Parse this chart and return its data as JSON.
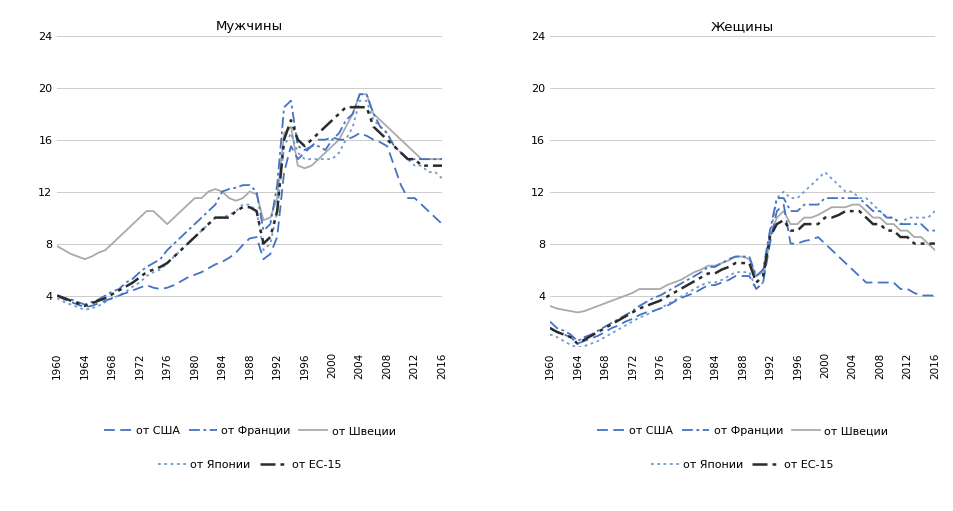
{
  "years": [
    1960,
    1961,
    1962,
    1963,
    1964,
    1965,
    1966,
    1967,
    1968,
    1969,
    1970,
    1971,
    1972,
    1973,
    1974,
    1975,
    1976,
    1977,
    1978,
    1979,
    1980,
    1981,
    1982,
    1983,
    1984,
    1985,
    1986,
    1987,
    1988,
    1989,
    1990,
    1991,
    1992,
    1993,
    1994,
    1995,
    1996,
    1997,
    1998,
    1999,
    2000,
    2001,
    2002,
    2003,
    2004,
    2005,
    2006,
    2007,
    2008,
    2009,
    2010,
    2011,
    2012,
    2013,
    2014,
    2015,
    2016
  ],
  "men": {
    "usa": [
      4.0,
      3.7,
      3.5,
      3.3,
      3.1,
      3.2,
      3.4,
      3.6,
      3.8,
      4.0,
      4.2,
      4.4,
      4.6,
      4.8,
      4.6,
      4.5,
      4.6,
      4.8,
      5.1,
      5.4,
      5.6,
      5.8,
      6.1,
      6.4,
      6.6,
      6.9,
      7.3,
      7.9,
      8.4,
      8.5,
      6.8,
      7.2,
      8.5,
      13.5,
      15.5,
      14.5,
      15.0,
      15.5,
      16.0,
      16.0,
      16.2,
      16.0,
      16.0,
      16.2,
      16.5,
      16.3,
      16.0,
      15.8,
      15.5,
      14.0,
      12.5,
      11.5,
      11.5,
      11.0,
      10.5,
      10.0,
      9.5
    ],
    "france": [
      4.0,
      3.8,
      3.7,
      3.5,
      3.3,
      3.5,
      3.7,
      4.0,
      4.3,
      4.5,
      5.0,
      5.3,
      5.8,
      6.2,
      6.5,
      6.8,
      7.5,
      8.0,
      8.5,
      9.0,
      9.5,
      10.0,
      10.5,
      11.0,
      12.0,
      12.2,
      12.3,
      12.5,
      12.5,
      12.0,
      9.0,
      9.5,
      12.5,
      18.5,
      19.0,
      15.5,
      15.2,
      15.5,
      15.5,
      15.2,
      16.0,
      16.5,
      17.5,
      18.0,
      19.5,
      19.5,
      18.0,
      17.0,
      16.5,
      15.5,
      15.0,
      14.5,
      14.5,
      14.5,
      14.5,
      14.5,
      14.5
    ],
    "sweden": [
      7.8,
      7.5,
      7.2,
      7.0,
      6.8,
      7.0,
      7.3,
      7.5,
      8.0,
      8.5,
      9.0,
      9.5,
      10.0,
      10.5,
      10.5,
      10.0,
      9.5,
      10.0,
      10.5,
      11.0,
      11.5,
      11.5,
      12.0,
      12.2,
      12.0,
      11.5,
      11.3,
      11.5,
      12.0,
      11.8,
      9.8,
      10.0,
      11.5,
      16.5,
      17.0,
      14.0,
      13.8,
      14.0,
      14.5,
      15.0,
      15.5,
      16.0,
      17.0,
      18.0,
      19.5,
      19.5,
      18.0,
      17.5,
      17.0,
      16.5,
      16.0,
      15.5,
      15.0,
      14.5,
      14.5,
      14.5,
      14.5
    ],
    "japan": [
      3.8,
      3.5,
      3.3,
      3.1,
      2.9,
      3.0,
      3.2,
      3.5,
      3.8,
      4.0,
      4.3,
      4.7,
      5.0,
      5.5,
      5.8,
      6.0,
      6.5,
      7.0,
      7.5,
      8.0,
      8.5,
      9.0,
      9.5,
      10.0,
      10.0,
      10.2,
      10.5,
      11.0,
      11.0,
      10.5,
      7.5,
      8.0,
      10.5,
      15.5,
      16.5,
      15.0,
      14.5,
      14.5,
      14.5,
      14.5,
      14.5,
      15.0,
      16.0,
      17.0,
      19.0,
      19.0,
      17.5,
      17.0,
      16.5,
      15.5,
      15.0,
      14.5,
      14.0,
      14.0,
      13.5,
      13.5,
      13.0
    ],
    "eu15": [
      4.0,
      3.8,
      3.6,
      3.4,
      3.2,
      3.4,
      3.6,
      3.8,
      4.1,
      4.4,
      4.7,
      5.0,
      5.4,
      5.8,
      6.0,
      6.2,
      6.5,
      7.0,
      7.5,
      8.0,
      8.5,
      9.0,
      9.5,
      10.0,
      10.0,
      10.0,
      10.5,
      10.8,
      10.8,
      10.5,
      8.0,
      8.5,
      10.5,
      16.0,
      17.5,
      16.0,
      15.5,
      16.0,
      16.5,
      17.0,
      17.5,
      18.0,
      18.5,
      18.5,
      18.5,
      18.5,
      17.0,
      16.5,
      16.0,
      15.5,
      15.0,
      14.5,
      14.5,
      14.0,
      14.0,
      14.0,
      14.0
    ]
  },
  "women": {
    "usa": [
      1.5,
      1.2,
      1.0,
      0.8,
      0.3,
      0.5,
      0.7,
      0.9,
      1.2,
      1.5,
      1.7,
      2.0,
      2.2,
      2.5,
      2.7,
      2.8,
      3.0,
      3.2,
      3.5,
      3.8,
      4.0,
      4.2,
      4.5,
      4.8,
      4.8,
      5.0,
      5.2,
      5.5,
      5.5,
      5.5,
      4.5,
      5.0,
      8.0,
      10.5,
      11.0,
      8.0,
      8.0,
      8.2,
      8.3,
      8.5,
      8.0,
      7.5,
      7.0,
      6.5,
      6.0,
      5.5,
      5.0,
      5.0,
      5.0,
      5.0,
      5.0,
      4.5,
      4.5,
      4.2,
      4.0,
      4.0,
      4.0
    ],
    "france": [
      2.0,
      1.5,
      1.3,
      1.0,
      0.5,
      0.8,
      1.0,
      1.3,
      1.6,
      1.9,
      2.2,
      2.5,
      2.8,
      3.2,
      3.5,
      3.8,
      4.0,
      4.3,
      4.6,
      4.9,
      5.2,
      5.5,
      5.8,
      6.2,
      6.2,
      6.5,
      6.8,
      7.0,
      7.0,
      7.0,
      5.5,
      6.0,
      9.0,
      11.5,
      11.5,
      10.5,
      10.5,
      11.0,
      11.0,
      11.0,
      11.5,
      11.5,
      11.5,
      11.5,
      11.5,
      11.5,
      11.0,
      10.5,
      10.5,
      10.0,
      10.0,
      9.5,
      9.5,
      9.5,
      9.5,
      9.0,
      9.0
    ],
    "sweden": [
      3.2,
      3.0,
      2.9,
      2.8,
      2.7,
      2.8,
      3.0,
      3.2,
      3.4,
      3.6,
      3.8,
      4.0,
      4.2,
      4.5,
      4.5,
      4.5,
      4.5,
      4.8,
      5.0,
      5.2,
      5.5,
      5.8,
      6.0,
      6.3,
      6.3,
      6.5,
      6.7,
      7.0,
      7.0,
      6.8,
      5.5,
      5.8,
      8.5,
      10.0,
      10.5,
      9.5,
      9.5,
      10.0,
      10.0,
      10.2,
      10.5,
      10.8,
      10.8,
      10.8,
      11.0,
      11.0,
      10.5,
      10.0,
      10.0,
      9.5,
      9.5,
      9.0,
      9.0,
      8.5,
      8.5,
      8.0,
      7.5
    ],
    "japan": [
      1.0,
      0.8,
      0.5,
      0.2,
      0.0,
      0.1,
      0.3,
      0.5,
      0.8,
      1.1,
      1.4,
      1.7,
      2.0,
      2.3,
      2.5,
      2.8,
      3.0,
      3.3,
      3.6,
      3.9,
      4.2,
      4.5,
      4.8,
      5.0,
      5.0,
      5.2,
      5.5,
      5.8,
      5.8,
      5.8,
      4.5,
      5.0,
      8.5,
      11.5,
      12.0,
      11.5,
      11.5,
      12.0,
      12.5,
      13.0,
      13.5,
      13.0,
      12.5,
      12.0,
      12.0,
      11.5,
      11.5,
      11.0,
      10.5,
      10.0,
      10.0,
      9.5,
      10.0,
      10.0,
      10.0,
      10.0,
      10.5
    ],
    "eu15": [
      1.5,
      1.2,
      1.0,
      0.8,
      0.3,
      0.6,
      0.9,
      1.2,
      1.5,
      1.8,
      2.1,
      2.4,
      2.7,
      3.0,
      3.2,
      3.4,
      3.6,
      3.9,
      4.2,
      4.5,
      4.8,
      5.1,
      5.4,
      5.7,
      5.7,
      6.0,
      6.2,
      6.5,
      6.5,
      6.5,
      5.0,
      5.5,
      8.5,
      9.5,
      9.8,
      9.0,
      9.0,
      9.5,
      9.5,
      9.5,
      10.0,
      10.0,
      10.2,
      10.5,
      10.5,
      10.5,
      10.0,
      9.5,
      9.5,
      9.0,
      9.0,
      8.5,
      8.5,
      8.0,
      8.0,
      8.0,
      8.0
    ]
  },
  "title_men": "Мужчины",
  "title_women": "Жещины",
  "color_usa": "#4472C4",
  "color_france": "#4472C4",
  "color_sweden": "#AAAAAA",
  "color_japan": "#7099CC",
  "color_eu15": "#2B2B2B",
  "legend_usa": "от США",
  "legend_france": "от Франции",
  "legend_sweden": "от Швеции",
  "legend_japan": "от Японии",
  "legend_eu15": "от ЕС-15",
  "ylim": [
    0,
    24
  ],
  "yticks": [
    0,
    4,
    8,
    12,
    16,
    20,
    24
  ],
  "xticks": [
    1960,
    1964,
    1968,
    1972,
    1976,
    1980,
    1984,
    1988,
    1992,
    1996,
    2000,
    2004,
    2008,
    2012,
    2016
  ],
  "background": "#FFFFFF",
  "grid_color": "#CCCCCC"
}
